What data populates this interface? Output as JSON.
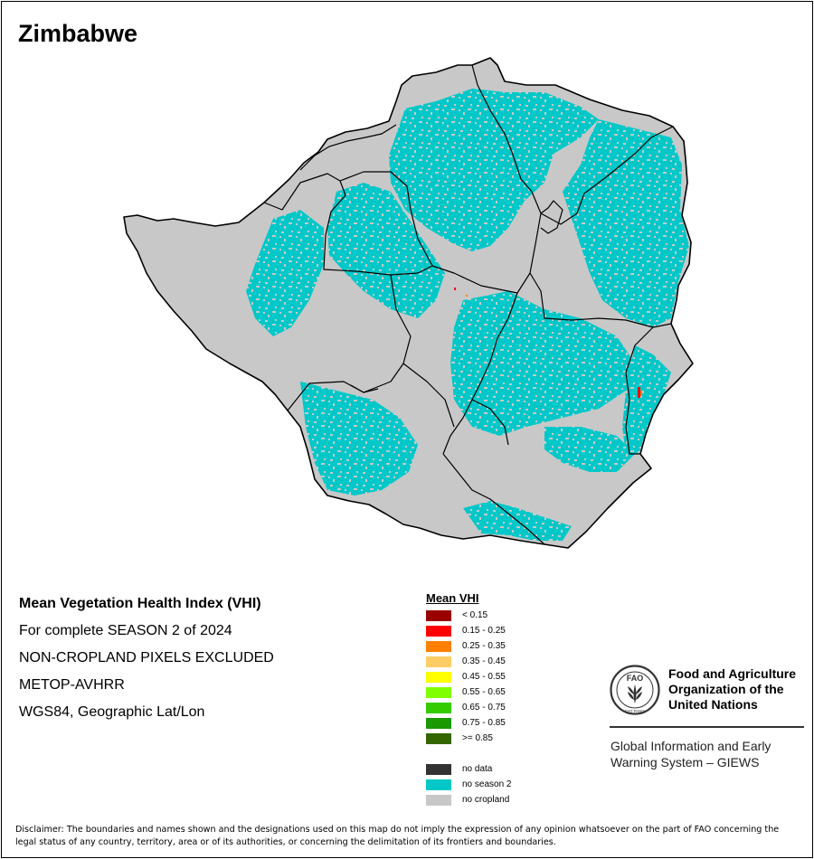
{
  "map": {
    "title": "Zimbabwe",
    "colors": {
      "no_cropland": "#c8c8c8",
      "no_season_2": "#00c8c8",
      "border": "#000000",
      "background": "#ffffff"
    }
  },
  "info": {
    "line1": "Mean Vegetation Health Index (VHI)",
    "line2": "For complete SEASON 2 of 2024",
    "line3": "NON-CROPLAND PIXELS EXCLUDED",
    "line4": "METOP-AVHRR",
    "line5": "WGS84, Geographic Lat/Lon"
  },
  "legend": {
    "title": "Mean VHI",
    "classes": [
      {
        "label": "< 0.15",
        "color": "#990000"
      },
      {
        "label": "0.15 - 0.25",
        "color": "#ff0000"
      },
      {
        "label": "0.25 - 0.35",
        "color": "#ff8000"
      },
      {
        "label": "0.35 - 0.45",
        "color": "#ffcc66"
      },
      {
        "label": "0.45 - 0.55",
        "color": "#ffff00"
      },
      {
        "label": "0.55 - 0.65",
        "color": "#80ff00"
      },
      {
        "label": "0.65 - 0.75",
        "color": "#33cc00"
      },
      {
        "label": "0.75 - 0.85",
        "color": "#1a9900"
      },
      {
        "label": ">= 0.85",
        "color": "#336600"
      }
    ],
    "extra": [
      {
        "label": "no data",
        "color": "#333333"
      },
      {
        "label": "no season 2",
        "color": "#00c8c8"
      },
      {
        "label": "no cropland",
        "color": "#c8c8c8"
      }
    ]
  },
  "organization": {
    "logo_text": "FAO",
    "logo_motto": "FIAT PANIS",
    "name_line1": "Food and Agriculture",
    "name_line2": "Organization of the",
    "name_line3": "United Nations",
    "giews_line1": "Global Information and Early",
    "giews_line2": "Warning System – GIEWS"
  },
  "disclaimer": "Disclaimer: The boundaries and names shown and the designations used on this map do not imply the expression of any opinion whatsoever on the part of FAO concerning the legal status of any country, territory, area or of its authorities, or concerning the delimitation of its frontiers and boundaries."
}
